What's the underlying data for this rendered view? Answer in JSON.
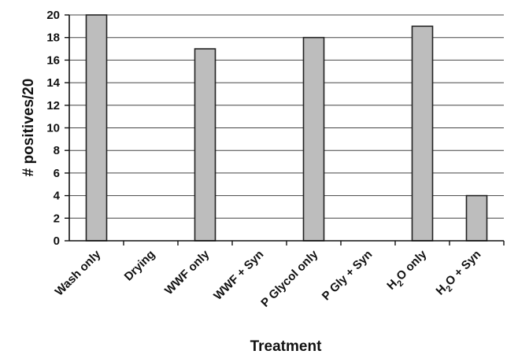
{
  "chart_data": {
    "type": "bar",
    "title": "",
    "xlabel": "Treatment",
    "ylabel": "# positives/20",
    "categories": [
      {
        "label": "Wash only",
        "sub": "",
        "tail": ""
      },
      {
        "label": "Drying",
        "sub": "",
        "tail": ""
      },
      {
        "label": "WWF only",
        "sub": "",
        "tail": ""
      },
      {
        "label": "WWF + Syn",
        "sub": "",
        "tail": ""
      },
      {
        "label": "P Glycol only",
        "sub": "",
        "tail": ""
      },
      {
        "label": "P Gly + Syn",
        "sub": "",
        "tail": ""
      },
      {
        "label": "H",
        "sub": "2",
        "tail": "O only"
      },
      {
        "label": "H",
        "sub": "2",
        "tail": "O + Syn"
      }
    ],
    "values": [
      20,
      0,
      17,
      0,
      18,
      0,
      19,
      4
    ],
    "ylim": [
      0,
      20
    ],
    "yticks": [
      "0",
      "2",
      "4",
      "6",
      "8",
      "10",
      "12",
      "14",
      "16",
      "18",
      "20"
    ],
    "grid": true,
    "legend": "none",
    "colors": {
      "bar_fill": "#bdbdbd",
      "bar_stroke": "#222222",
      "grid": "#444444",
      "axis": "#111111"
    }
  }
}
